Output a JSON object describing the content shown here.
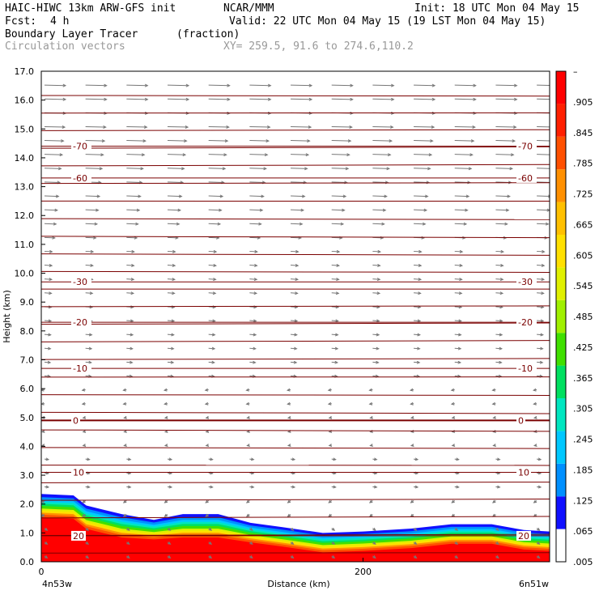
{
  "header": {
    "model": "HAIC-HIWC 13km ARW-GFS init",
    "org": "NCAR/MMM",
    "init": "Init: 18 UTC Mon 04 May 15",
    "fcst_label": "Fcst:",
    "fcst_value": "4 h",
    "valid": "Valid: 22 UTC Mon 04 May 15 (19 LST Mon 04 May 15)",
    "field": "Boundary Layer Tracer",
    "units": "(fraction)",
    "vectors": "Circulation vectors",
    "xy": "XY= 259.5, 91.6 to 274.6,110.2"
  },
  "colors": {
    "contour": "#7a0000",
    "vector": "#777777",
    "palette": [
      "#ffffff",
      "#1010ff",
      "#0090ff",
      "#00c8ff",
      "#00e6c0",
      "#00e060",
      "#40e000",
      "#a0f000",
      "#e0f000",
      "#ffe000",
      "#ffc000",
      "#ff9000",
      "#ff5000",
      "#ff2000",
      "#ff0000"
    ]
  },
  "chart_data": {
    "type": "heatmap",
    "xlabel": "Distance (km)",
    "ylabel": "Height (km)",
    "xlim": [
      0,
      316
    ],
    "ylim": [
      0,
      17
    ],
    "x_ticks": [
      "0",
      "200"
    ],
    "x_tick_values": [
      0,
      200
    ],
    "x_end_labels": [
      "4n53w",
      "6n51w"
    ],
    "y_ticks": [
      "0.0",
      "1.0",
      "2.0",
      "3.0",
      "4.0",
      "5.0",
      "6.0",
      "7.0",
      "8.0",
      "9.0",
      "10.0",
      "11.0",
      "12.0",
      "13.0",
      "14.0",
      "15.0",
      "16.0",
      "17.0"
    ],
    "colorbar_labels": [
      ".005",
      ".065",
      ".125",
      ".185",
      ".245",
      ".305",
      ".365",
      ".425",
      ".485",
      ".545",
      ".605",
      ".665",
      ".725",
      ".785",
      ".845",
      ".905",
      "–"
    ],
    "temperature_contours": [
      {
        "label": "-70",
        "height": 14.4
      },
      {
        "label": "-60",
        "height": 13.3
      },
      {
        "label": "-30",
        "height": 9.7
      },
      {
        "label": "-20",
        "height": 8.3
      },
      {
        "label": "-10",
        "height": 6.7
      },
      {
        "label": "0",
        "height": 4.9
      },
      {
        "label": "10",
        "height": 3.1
      },
      {
        "label": "20",
        "height": 0.9
      }
    ],
    "tracer_top_km": [
      [
        0,
        2.35
      ],
      [
        20,
        2.3
      ],
      [
        28,
        1.95
      ],
      [
        50,
        1.65
      ],
      [
        70,
        1.45
      ],
      [
        88,
        1.65
      ],
      [
        110,
        1.65
      ],
      [
        130,
        1.35
      ],
      [
        150,
        1.2
      ],
      [
        175,
        1.0
      ],
      [
        200,
        1.05
      ],
      [
        230,
        1.15
      ],
      [
        255,
        1.3
      ],
      [
        280,
        1.3
      ],
      [
        300,
        1.1
      ],
      [
        316,
        1.05
      ]
    ]
  }
}
